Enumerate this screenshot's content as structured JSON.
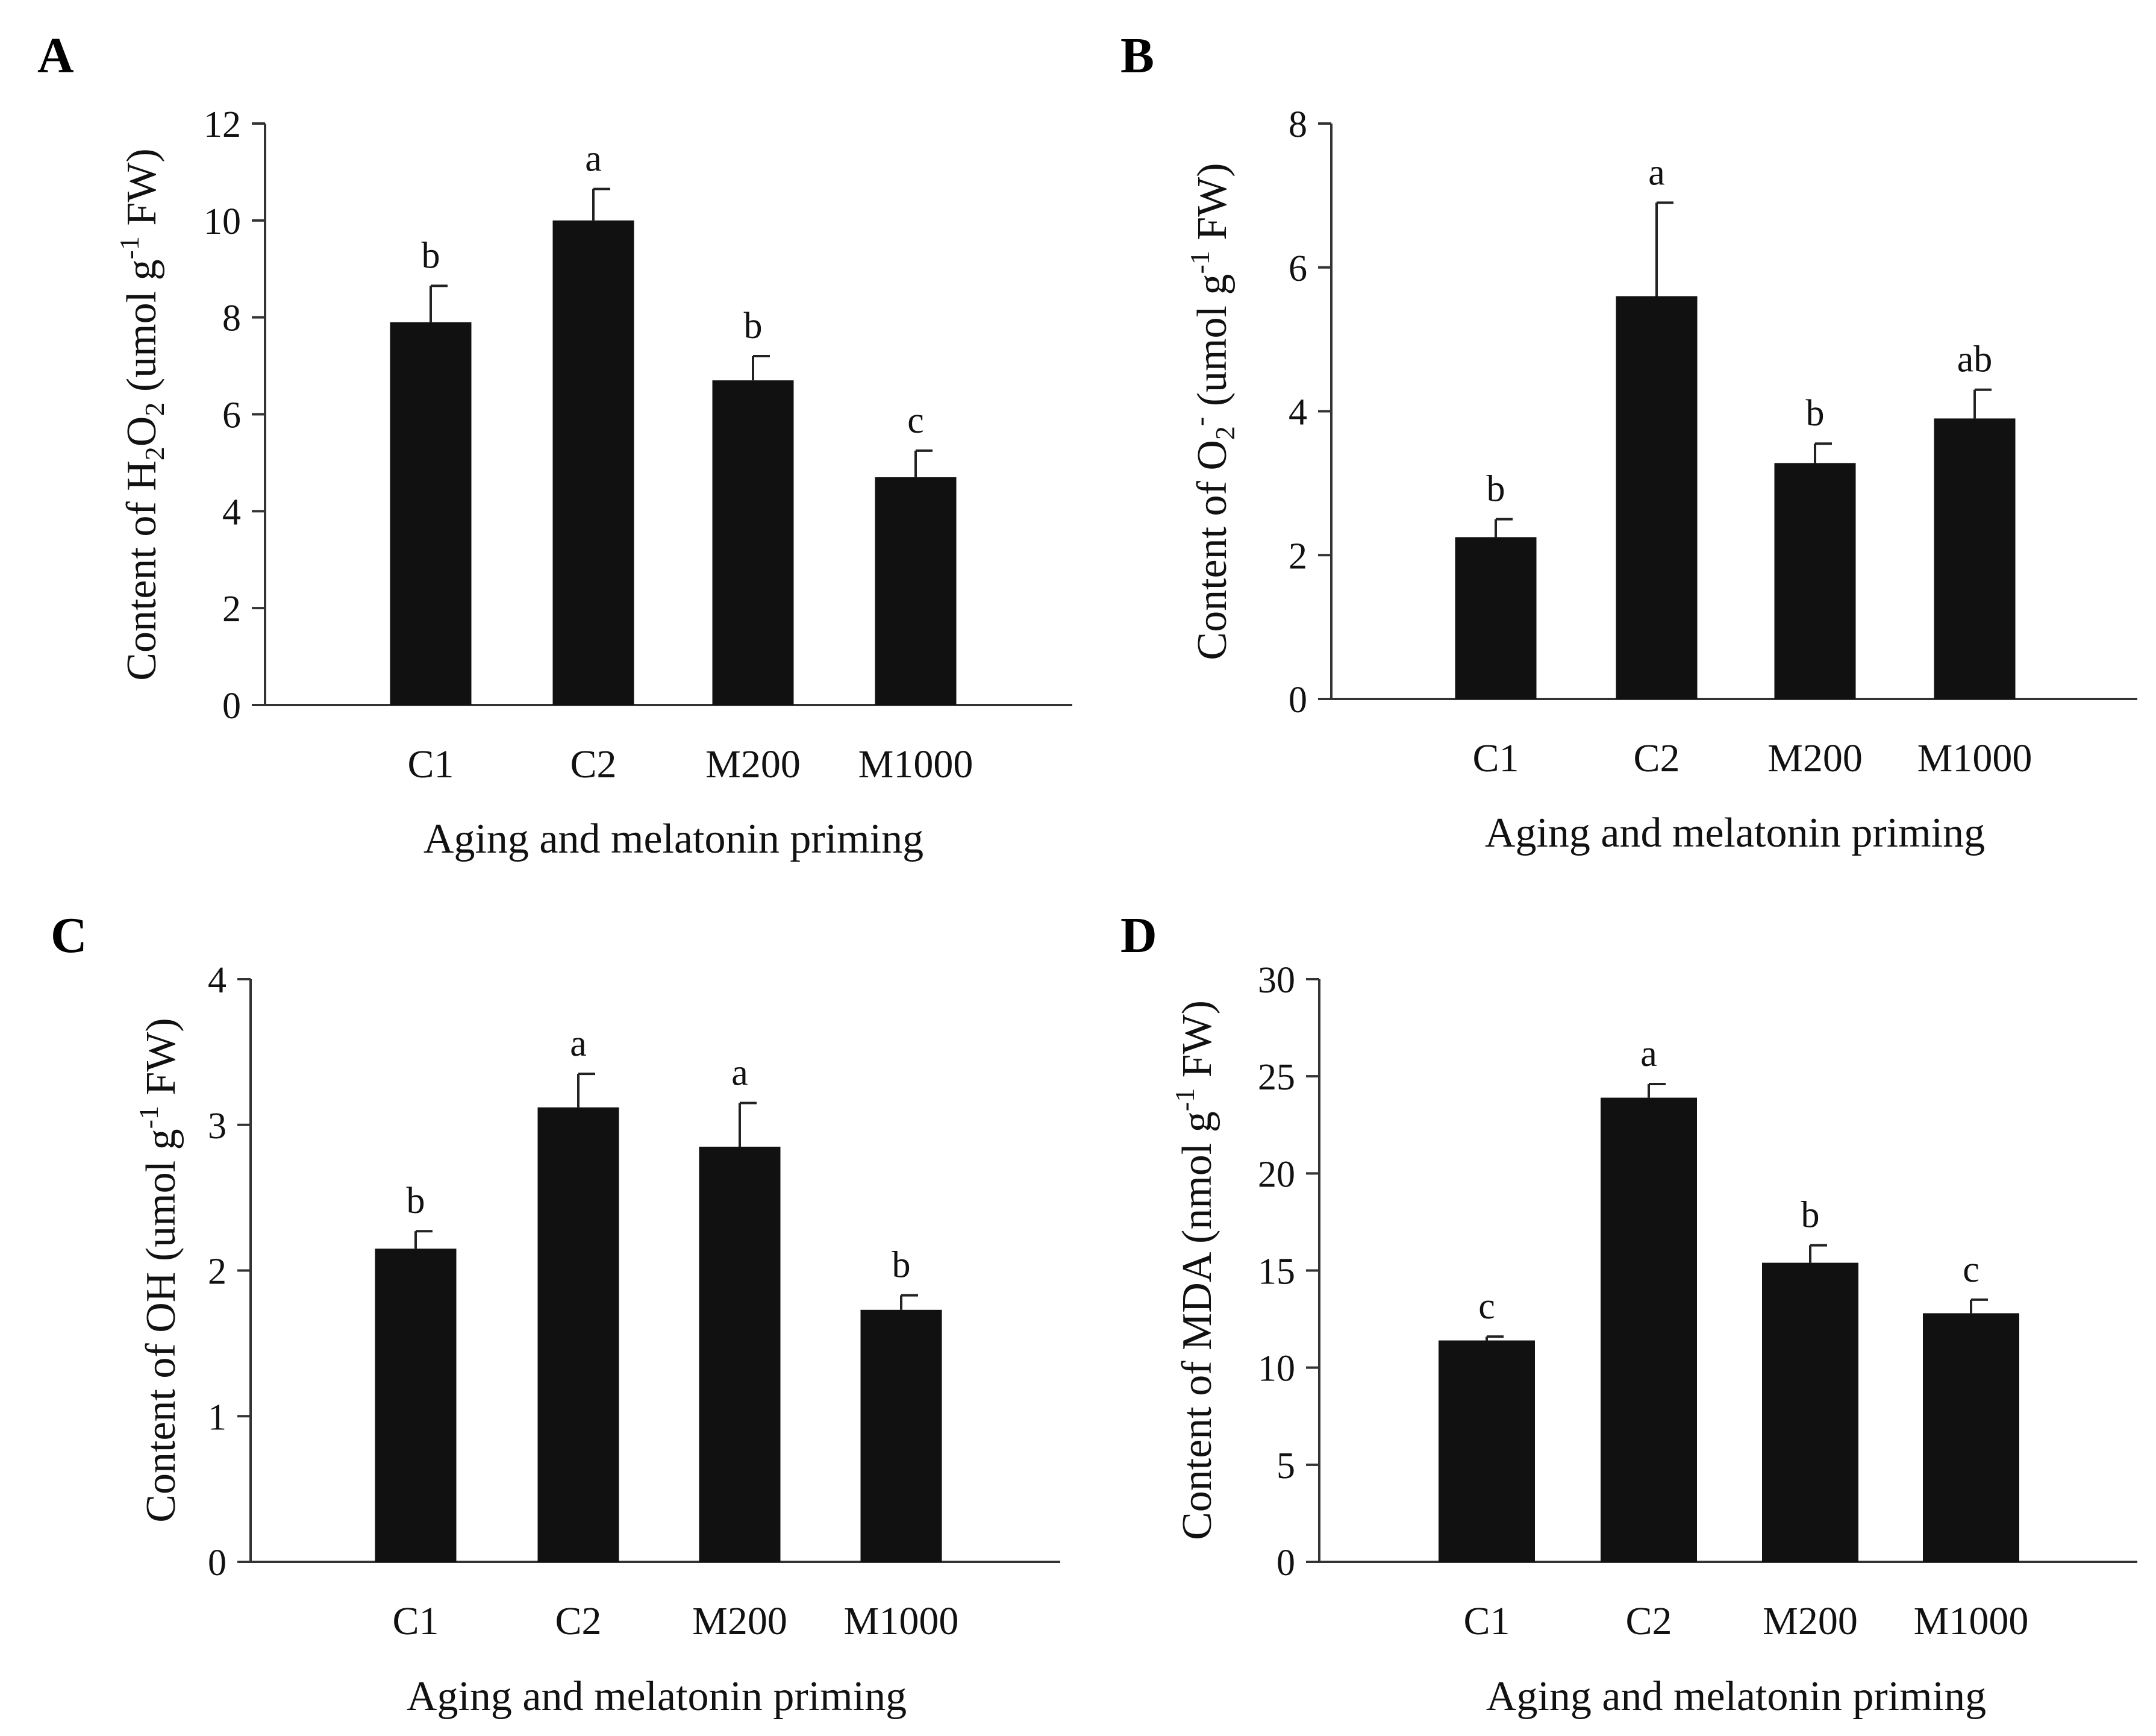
{
  "chart_data": [
    {
      "type": "bar",
      "panel": "A",
      "categories": [
        "C1",
        "C2",
        "M200",
        "M1000"
      ],
      "values": [
        7.9,
        10.0,
        6.7,
        4.7
      ],
      "errors": [
        0.75,
        0.65,
        0.5,
        0.55
      ],
      "significance": [
        "b",
        "a",
        "b",
        "c"
      ],
      "ylim": [
        0,
        12
      ],
      "yticks": [
        "0",
        "2",
        "4",
        "6",
        "8",
        "10",
        "12"
      ],
      "xlabel": "Aging and melatonin priming",
      "ylabel": {
        "pre": "Content of H",
        "s1": "2",
        "mid": "O",
        "s2": "2",
        "unit": " (umol g",
        "sup": "-1",
        "post": " FW)"
      },
      "bar_color": "#111111"
    },
    {
      "type": "bar",
      "panel": "B",
      "categories": [
        "C1",
        "C2",
        "M200",
        "M1000"
      ],
      "values": [
        2.25,
        5.6,
        3.28,
        3.9
      ],
      "errors": [
        0.25,
        1.3,
        0.27,
        0.4
      ],
      "significance": [
        "b",
        "a",
        "b",
        "ab"
      ],
      "ylim": [
        0,
        8
      ],
      "yticks": [
        "0",
        "2",
        "4",
        "6",
        "8"
      ],
      "xlabel": "Aging and melatonin priming",
      "ylabel": {
        "pre": "Content of O",
        "s1": "2",
        "sup1": "-",
        "unit": " (umol g",
        "sup": "-1",
        "post": " FW)"
      },
      "bar_color": "#111111"
    },
    {
      "type": "bar",
      "panel": "C",
      "categories": [
        "C1",
        "C2",
        "M200",
        "M1000"
      ],
      "values": [
        2.15,
        3.12,
        2.85,
        1.73
      ],
      "errors": [
        0.12,
        0.23,
        0.3,
        0.1
      ],
      "significance": [
        "b",
        "a",
        "a",
        "b"
      ],
      "ylim": [
        0,
        4
      ],
      "yticks": [
        "0",
        "1",
        "2",
        "3",
        "4"
      ],
      "xlabel": "Aging and melatonin priming",
      "ylabel": {
        "pre": "Content of OH",
        "unit": " (umol g",
        "sup": "-1",
        "post": " FW)"
      },
      "bar_color": "#111111"
    },
    {
      "type": "bar",
      "panel": "D",
      "categories": [
        "C1",
        "C2",
        "M200",
        "M1000"
      ],
      "values": [
        11.4,
        23.9,
        15.4,
        12.8
      ],
      "errors": [
        0.2,
        0.7,
        0.9,
        0.7
      ],
      "significance": [
        "c",
        "a",
        "b",
        "c"
      ],
      "ylim": [
        0,
        30
      ],
      "yticks": [
        "0",
        "5",
        "10",
        "15",
        "20",
        "25",
        "30"
      ],
      "xlabel": "Aging and melatonin priming",
      "ylabel": {
        "pre": "Content of MDA",
        "unit": " (nmol g",
        "sup": "-1",
        "post": " FW)"
      },
      "bar_color": "#111111"
    }
  ]
}
